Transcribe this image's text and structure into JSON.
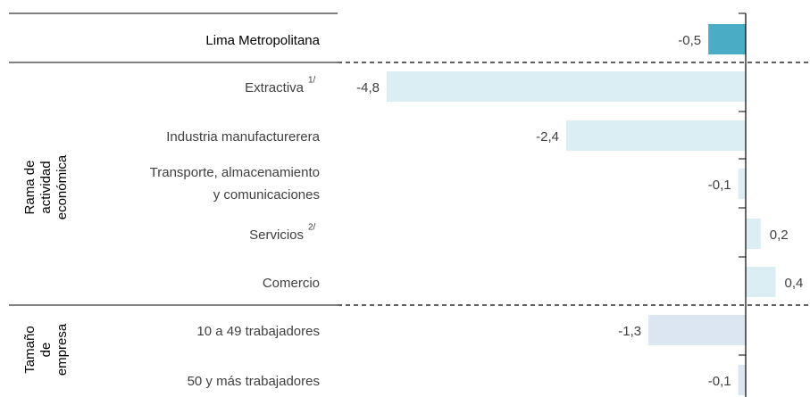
{
  "chart_data": {
    "type": "bar",
    "orientation": "horizontal",
    "categories": [
      "Lima Metropolitana",
      "Extractiva",
      "Industria manufacturerera",
      [
        "Transporte, almacenamiento",
        "y comunicaciones"
      ],
      "Servicios",
      "Comercio",
      "10 a 49 trabajadores",
      "50 y más trabajadores"
    ],
    "notes": [
      null,
      "1/",
      null,
      null,
      "2/",
      null,
      null,
      null
    ],
    "values": [
      -0.5,
      -4.8,
      -2.4,
      -0.1,
      0.2,
      0.4,
      -1.3,
      -0.1
    ],
    "value_labels": [
      "-0,5",
      "-4,8",
      "-2,4",
      "-0,1",
      "0,2",
      "0,4",
      "-1,3",
      "-0,1"
    ],
    "colors": [
      "#4bacc6",
      "#daeef3",
      "#daeef3",
      "#daeef3",
      "#daeef3",
      "#daeef3",
      "#dce6f2",
      "#dce6f2"
    ],
    "groups": [
      [
        "Rama de",
        "actividad",
        "económica"
      ],
      [
        "Tamaño",
        "de",
        "empresa"
      ]
    ]
  }
}
